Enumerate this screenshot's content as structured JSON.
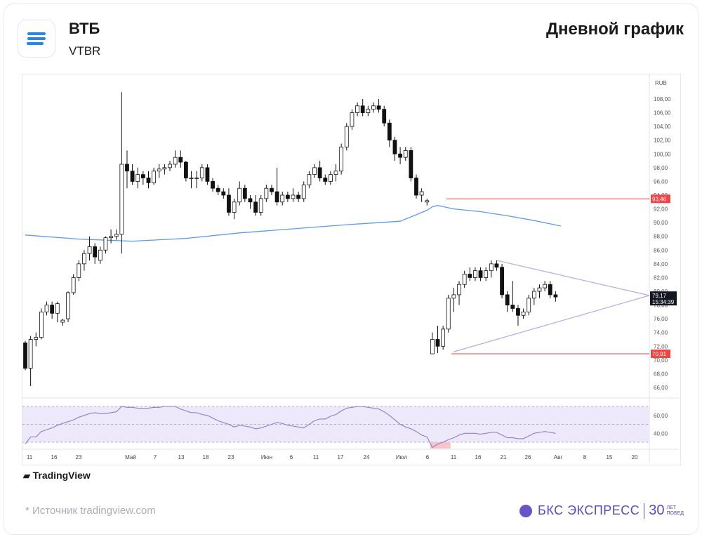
{
  "header": {
    "title": "ВТБ",
    "ticker": "VTBR",
    "right_label": "Дневной график"
  },
  "footer": {
    "tradingview": "TradingView",
    "source": "*  Источник tradingview.com",
    "brand": "БКС ЭКСПРЕСС",
    "brand_30": "30",
    "brand_small_1": "ЛЕТ",
    "brand_small_2": "ПОБЕД"
  },
  "colors": {
    "up": "#ffffff",
    "down": "#111111",
    "ma": "#5b9bea",
    "rsi": "#8e7fc7",
    "rsi_band": "#ede9fb",
    "level": "#ef4444",
    "triangle": "#b7a9e6"
  },
  "chart_data": {
    "type": "candlestick",
    "currency": "RUB",
    "ylim": [
      65,
      110
    ],
    "yticks": [
      "66,00",
      "68,00",
      "70,00",
      "72,00",
      "74,00",
      "76,00",
      "78,00",
      "80,00",
      "82,00",
      "84,00",
      "86,00",
      "88,00",
      "90,00",
      "92,00",
      "94,00",
      "96,00",
      "98,00",
      "100,00",
      "102,00",
      "104,00",
      "106,00",
      "108,00"
    ],
    "xticks": [
      "11",
      "16",
      "23",
      "Май",
      "7",
      "13",
      "18",
      "23",
      "Июн",
      "6",
      "11",
      "17",
      "24",
      "Июл",
      "6",
      "11",
      "16",
      "21",
      "26",
      "Авг",
      "8",
      "15",
      "20"
    ],
    "last_price": "79,17",
    "countdown": "15:34:39",
    "levels": [
      {
        "value": 93.46,
        "label": "93,46"
      },
      {
        "value": 70.91,
        "label": "70,91"
      }
    ],
    "candles": [
      [
        72.5,
        72.8,
        68.5,
        68.8
      ],
      [
        68.8,
        73.5,
        66.2,
        73.0
      ],
      [
        73.0,
        74.0,
        72.0,
        73.3
      ],
      [
        73.3,
        77.5,
        73.0,
        77.0
      ],
      [
        77.0,
        78.5,
        76.5,
        78.0
      ],
      [
        78.0,
        78.5,
        76.0,
        76.8
      ],
      [
        76.8,
        78.5,
        75.5,
        78.2
      ],
      [
        75.5,
        76.0,
        75.0,
        75.8
      ],
      [
        76.0,
        80.0,
        75.5,
        79.8
      ],
      [
        79.8,
        82.5,
        79.5,
        82.0
      ],
      [
        82.0,
        84.5,
        81.5,
        84.0
      ],
      [
        84.0,
        86.0,
        83.0,
        85.5
      ],
      [
        85.5,
        88.0,
        84.5,
        86.5
      ],
      [
        86.5,
        87.0,
        84.0,
        85.0
      ],
      [
        84.5,
        86.5,
        84.0,
        86.0
      ],
      [
        86.0,
        88.0,
        85.5,
        87.8
      ],
      [
        87.8,
        89.0,
        87.0,
        88.0
      ],
      [
        88.0,
        89.0,
        87.5,
        88.3
      ],
      [
        88.3,
        109.0,
        85.5,
        98.5
      ],
      [
        98.5,
        100.5,
        95.0,
        97.5
      ],
      [
        97.5,
        98.5,
        95.5,
        96.0
      ],
      [
        96.0,
        98.0,
        95.0,
        97.0
      ],
      [
        97.0,
        97.5,
        95.5,
        96.5
      ],
      [
        96.5,
        97.5,
        95.0,
        95.8
      ],
      [
        95.8,
        98.0,
        95.5,
        97.5
      ],
      [
        97.5,
        98.5,
        96.5,
        97.8
      ],
      [
        97.8,
        98.5,
        97.0,
        98.0
      ],
      [
        98.0,
        99.0,
        97.5,
        98.5
      ],
      [
        98.5,
        100.5,
        98.0,
        99.5
      ],
      [
        99.5,
        100.5,
        98.0,
        98.8
      ],
      [
        98.8,
        99.0,
        96.0,
        96.5
      ],
      [
        96.5,
        97.5,
        95.0,
        96.5
      ],
      [
        96.5,
        97.5,
        95.0,
        96.5
      ],
      [
        96.5,
        98.5,
        96.0,
        98.0
      ],
      [
        98.0,
        98.5,
        95.5,
        96.0
      ],
      [
        96.0,
        96.5,
        94.5,
        95.0
      ],
      [
        95.0,
        95.5,
        94.0,
        94.5
      ],
      [
        94.5,
        95.0,
        93.5,
        94.0
      ],
      [
        94.0,
        95.0,
        91.0,
        91.5
      ],
      [
        91.5,
        93.5,
        90.5,
        93.0
      ],
      [
        93.0,
        96.0,
        92.5,
        95.0
      ],
      [
        95.0,
        95.5,
        93.0,
        93.5
      ],
      [
        93.5,
        94.0,
        92.0,
        93.0
      ],
      [
        93.0,
        94.0,
        91.0,
        91.5
      ],
      [
        91.5,
        94.0,
        91.0,
        93.5
      ],
      [
        93.5,
        95.5,
        93.0,
        95.0
      ],
      [
        95.0,
        95.5,
        94.0,
        94.5
      ],
      [
        94.5,
        98.0,
        92.5,
        93.0
      ],
      [
        93.0,
        94.5,
        92.5,
        94.0
      ],
      [
        94.0,
        94.5,
        93.0,
        93.5
      ],
      [
        93.5,
        95.0,
        93.0,
        94.0
      ],
      [
        94.0,
        94.5,
        93.0,
        93.5
      ],
      [
        93.5,
        96.0,
        93.0,
        95.5
      ],
      [
        95.5,
        97.5,
        95.0,
        97.0
      ],
      [
        97.0,
        98.5,
        96.5,
        98.0
      ],
      [
        98.0,
        99.0,
        96.0,
        96.5
      ],
      [
        96.5,
        97.0,
        95.5,
        96.0
      ],
      [
        96.0,
        97.5,
        95.5,
        97.0
      ],
      [
        97.0,
        98.5,
        96.0,
        97.5
      ],
      [
        97.5,
        101.5,
        97.0,
        101.0
      ],
      [
        101.0,
        104.5,
        100.5,
        104.0
      ],
      [
        104.0,
        106.5,
        103.5,
        106.0
      ],
      [
        106.0,
        107.5,
        105.5,
        107.0
      ],
      [
        107.0,
        108.0,
        105.5,
        106.0
      ],
      [
        106.0,
        107.0,
        105.5,
        106.5
      ],
      [
        106.5,
        107.5,
        106.0,
        107.0
      ],
      [
        107.0,
        108.0,
        106.0,
        106.5
      ],
      [
        106.5,
        107.0,
        104.0,
        104.5
      ],
      [
        104.5,
        105.0,
        101.0,
        102.0
      ],
      [
        102.0,
        102.5,
        99.0,
        100.0
      ],
      [
        100.0,
        101.0,
        98.5,
        99.5
      ],
      [
        99.5,
        101.0,
        99.0,
        100.5
      ],
      [
        100.5,
        101.0,
        96.0,
        96.5
      ],
      [
        96.5,
        97.0,
        93.5,
        94.0
      ],
      [
        94.0,
        95.0,
        93.0,
        94.5
      ],
      [
        93.0,
        93.5,
        92.5,
        93.2
      ],
      [
        70.9,
        74.0,
        70.9,
        73.0
      ],
      [
        73.0,
        75.0,
        71.0,
        72.0
      ],
      [
        72.0,
        75.0,
        71.5,
        74.5
      ],
      [
        74.5,
        79.5,
        74.0,
        79.0
      ],
      [
        79.0,
        80.5,
        77.0,
        79.5
      ],
      [
        79.5,
        81.5,
        78.0,
        81.0
      ],
      [
        81.0,
        83.0,
        80.5,
        82.5
      ],
      [
        82.5,
        83.5,
        81.5,
        82.0
      ],
      [
        82.0,
        83.5,
        81.5,
        83.0
      ],
      [
        83.0,
        83.5,
        81.5,
        82.0
      ],
      [
        82.0,
        83.5,
        81.5,
        83.0
      ],
      [
        83.0,
        84.5,
        82.0,
        84.0
      ],
      [
        84.0,
        84.5,
        83.0,
        83.5
      ],
      [
        83.5,
        84.0,
        79.0,
        79.5
      ],
      [
        79.5,
        80.0,
        77.0,
        78.0
      ],
      [
        78.0,
        81.5,
        77.0,
        77.5
      ],
      [
        77.5,
        78.0,
        75.0,
        76.5
      ],
      [
        76.5,
        77.5,
        76.0,
        77.0
      ],
      [
        77.0,
        79.5,
        76.5,
        79.0
      ],
      [
        79.0,
        80.5,
        78.0,
        80.0
      ],
      [
        80.0,
        81.0,
        79.0,
        80.5
      ],
      [
        80.5,
        81.5,
        80.0,
        81.0
      ],
      [
        81.0,
        81.5,
        79.0,
        79.5
      ],
      [
        79.5,
        80.0,
        78.5,
        79.17
      ]
    ],
    "ma": [
      [
        0,
        88.2
      ],
      [
        10,
        87.6
      ],
      [
        20,
        87.3
      ],
      [
        30,
        87.7
      ],
      [
        40,
        88.5
      ],
      [
        50,
        89.1
      ],
      [
        60,
        89.7
      ],
      [
        70,
        90.2
      ],
      [
        75,
        91.8
      ],
      [
        76,
        92.3
      ],
      [
        77,
        92.5
      ],
      [
        80,
        92.0
      ],
      [
        85,
        91.6
      ],
      [
        90,
        91.0
      ],
      [
        95,
        90.3
      ],
      [
        100,
        89.5
      ]
    ],
    "rsi": {
      "ticks": [
        "60,00",
        "40,00"
      ],
      "band_upper": 70,
      "band_lower": 30,
      "middle": 50,
      "values": [
        28,
        36,
        36,
        42,
        44,
        46,
        49,
        51,
        53,
        55,
        58,
        60,
        62,
        63,
        62,
        62,
        63,
        64,
        70,
        69,
        69,
        68,
        68,
        68,
        69,
        69,
        70,
        70,
        70,
        67,
        65,
        63,
        63,
        61,
        60,
        57,
        54,
        52,
        50,
        47,
        49,
        48,
        47,
        45,
        46,
        48,
        50,
        52,
        51,
        49,
        48,
        47,
        46,
        50,
        54,
        56,
        56,
        59,
        61,
        65,
        68,
        69,
        70,
        70,
        69,
        68,
        67,
        64,
        60,
        55,
        50,
        47,
        45,
        42,
        38,
        36,
        24,
        28,
        30,
        33,
        35,
        38,
        40,
        40,
        40,
        39,
        40,
        41,
        41,
        38,
        35,
        35,
        34,
        34,
        37,
        40,
        41,
        42,
        41,
        40
      ]
    }
  }
}
